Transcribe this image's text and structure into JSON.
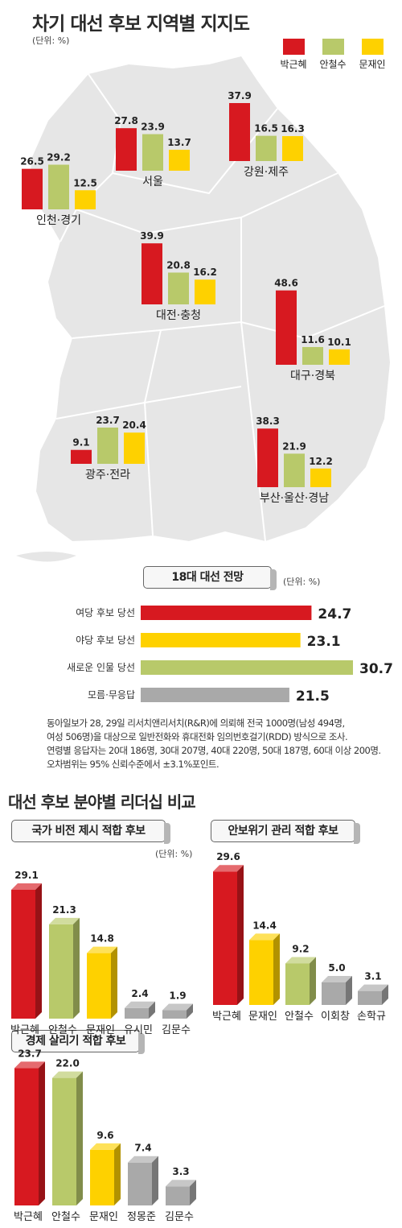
{
  "title": "차기 대선 후보 지역별 지지도",
  "unit_label": "(단위: %)",
  "colors": {
    "park": "#d71920",
    "ahn": "#b8c96a",
    "moon": "#fed100",
    "gray": "#a9a9a9",
    "map": "#e6e6e6"
  },
  "regional": {
    "legend": [
      "박근혜",
      "안철수",
      "문재인"
    ],
    "regions": [
      {
        "name": "서울",
        "values": [
          27.8,
          23.9,
          13.7
        ]
      },
      {
        "name": "강원·제주",
        "values": [
          37.9,
          16.5,
          16.3
        ]
      },
      {
        "name": "인천·경기",
        "values": [
          26.5,
          29.2,
          12.5
        ]
      },
      {
        "name": "대전·충청",
        "values": [
          39.9,
          20.8,
          16.2
        ]
      },
      {
        "name": "대구·경북",
        "values": [
          48.6,
          11.6,
          10.1
        ]
      },
      {
        "name": "광주·전라",
        "values": [
          9.1,
          23.7,
          20.4
        ]
      },
      {
        "name": "부산·울산·경남",
        "values": [
          38.3,
          21.9,
          12.2
        ]
      }
    ]
  },
  "outlook": {
    "title": "18대 대선 전망",
    "unit": "(단위: %)",
    "items": [
      {
        "label": "여당 후보 당선",
        "value": 24.7,
        "color": "park"
      },
      {
        "label": "야당 후보 당선",
        "value": 23.1,
        "color": "moon"
      },
      {
        "label": "새로운 인물 당선",
        "value": 30.7,
        "color": "ahn"
      },
      {
        "label": "모름·무응답",
        "value": 21.5,
        "color": "gray"
      }
    ]
  },
  "footnote": [
    "동아일보가 28, 29일 리서치앤리서치(R&R)에 의뢰해 전국 1000명(남성 494명,",
    "여성 506명)을 대상으로 일반전화와 휴대전화 임의번호걸기(RDD) 방식으로 조사.",
    "연령별 응답자는 20대 186명, 30대 207명, 40대 220명, 50대 187명, 60대 이상 200명.",
    "오차범위는 95% 신뢰수준에서 ±3.1%포인트."
  ],
  "leadership": {
    "title": "대선 후보 분야별 리더십 비교",
    "unit": "(단위: %)",
    "panels": [
      {
        "title": "국가 비전 제시 적합 후보",
        "items": [
          {
            "name": "박근혜",
            "value": 29.1,
            "color": "park"
          },
          {
            "name": "안철수",
            "value": 21.3,
            "color": "ahn"
          },
          {
            "name": "문재인",
            "value": 14.8,
            "color": "moon"
          },
          {
            "name": "유시민",
            "value": 2.4,
            "color": "gray"
          },
          {
            "name": "김문수",
            "value": 1.9,
            "color": "gray"
          }
        ]
      },
      {
        "title": "안보위기 관리 적합 후보",
        "items": [
          {
            "name": "박근혜",
            "value": 29.6,
            "color": "park"
          },
          {
            "name": "문재인",
            "value": 14.4,
            "color": "moon"
          },
          {
            "name": "안철수",
            "value": 9.2,
            "color": "ahn"
          },
          {
            "name": "이회창",
            "value": 5.0,
            "color": "gray"
          },
          {
            "name": "손학규",
            "value": 3.1,
            "color": "gray"
          }
        ]
      },
      {
        "title": "경제 살리기 적합 후보",
        "items": [
          {
            "name": "박근혜",
            "value": 23.7,
            "color": "park"
          },
          {
            "name": "안철수",
            "value": 22.0,
            "color": "ahn"
          },
          {
            "name": "문재인",
            "value": 9.6,
            "color": "moon"
          },
          {
            "name": "정몽준",
            "value": 7.4,
            "color": "gray"
          },
          {
            "name": "김문수",
            "value": 3.3,
            "color": "gray"
          }
        ]
      }
    ]
  },
  "chart_data": [
    {
      "type": "bar",
      "title": "차기 대선 후보 지역별 지지도",
      "ylabel": "(단위: %)",
      "categories": [
        "서울",
        "강원·제주",
        "인천·경기",
        "대전·충청",
        "대구·경북",
        "광주·전라",
        "부산·울산·경남"
      ],
      "series": [
        {
          "name": "박근혜",
          "values": [
            27.8,
            37.9,
            26.5,
            39.9,
            48.6,
            9.1,
            38.3
          ]
        },
        {
          "name": "안철수",
          "values": [
            23.9,
            16.5,
            29.2,
            20.8,
            11.6,
            23.7,
            21.9
          ]
        },
        {
          "name": "문재인",
          "values": [
            13.7,
            16.3,
            12.5,
            16.2,
            10.1,
            20.4,
            12.2
          ]
        }
      ]
    },
    {
      "type": "bar",
      "title": "18대 대선 전망",
      "ylabel": "(단위: %)",
      "categories": [
        "여당 후보 당선",
        "야당 후보 당선",
        "새로운 인물 당선",
        "모름·무응답"
      ],
      "values": [
        24.7,
        23.1,
        30.7,
        21.5
      ]
    },
    {
      "type": "bar",
      "title": "국가 비전 제시 적합 후보",
      "ylabel": "(단위: %)",
      "categories": [
        "박근혜",
        "안철수",
        "문재인",
        "유시민",
        "김문수"
      ],
      "values": [
        29.1,
        21.3,
        14.8,
        2.4,
        1.9
      ]
    },
    {
      "type": "bar",
      "title": "안보위기 관리 적합 후보",
      "categories": [
        "박근혜",
        "문재인",
        "안철수",
        "이회창",
        "손학규"
      ],
      "values": [
        29.6,
        14.4,
        9.2,
        5.0,
        3.1
      ]
    },
    {
      "type": "bar",
      "title": "경제 살리기 적합 후보",
      "categories": [
        "박근혜",
        "안철수",
        "문재인",
        "정몽준",
        "김문수"
      ],
      "values": [
        23.7,
        22.0,
        9.6,
        7.4,
        3.3
      ]
    }
  ]
}
